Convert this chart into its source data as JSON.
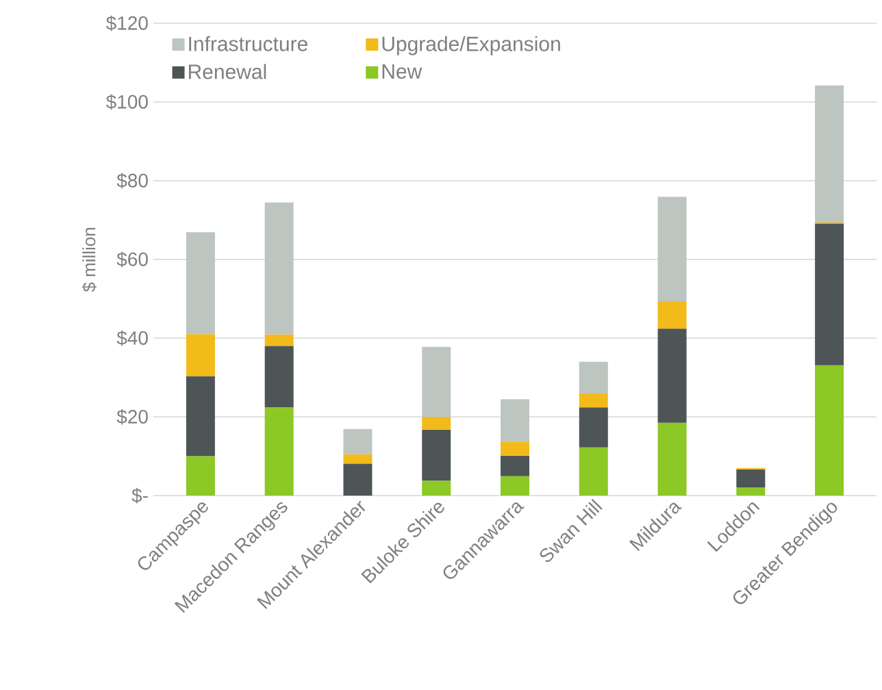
{
  "chart_data": {
    "type": "bar",
    "stacked": true,
    "ylabel": "$ million",
    "categories": [
      "Campaspe",
      "Macedon Ranges",
      "Mount Alexander",
      "Buloke Shire",
      "Gannawarra",
      "Swan Hill",
      "Mildura",
      "Loddon",
      "Greater Bendigo"
    ],
    "series": [
      {
        "name": "New",
        "color": "#8cc826",
        "values": [
          10.0,
          22.4,
          0,
          3.8,
          4.9,
          12.2,
          18.5,
          2.0,
          33.1
        ]
      },
      {
        "name": "Renewal",
        "color": "#4d5556",
        "values": [
          20.3,
          15.6,
          8.1,
          12.9,
          5.2,
          10.2,
          23.9,
          4.6,
          36.0
        ]
      },
      {
        "name": "Upgrade/Expansion",
        "color": "#f2bb1a",
        "values": [
          10.7,
          2.9,
          2.4,
          3.3,
          3.6,
          3.5,
          7.0,
          0.4,
          0.3
        ]
      },
      {
        "name": "Infrastructure",
        "color": "#bdc5c1",
        "values": [
          25.9,
          33.6,
          6.4,
          17.8,
          10.8,
          8.1,
          26.5,
          0,
          34.8
        ]
      }
    ],
    "ylim": [
      0,
      120
    ],
    "yticks": [
      {
        "value": 0,
        "label": "$-"
      },
      {
        "value": 20,
        "label": "$20"
      },
      {
        "value": 40,
        "label": "$40"
      },
      {
        "value": 60,
        "label": "$60"
      },
      {
        "value": 80,
        "label": "$80"
      },
      {
        "value": 100,
        "label": "$100"
      },
      {
        "value": 120,
        "label": "$120"
      }
    ],
    "grid": "y",
    "legend": "top"
  }
}
